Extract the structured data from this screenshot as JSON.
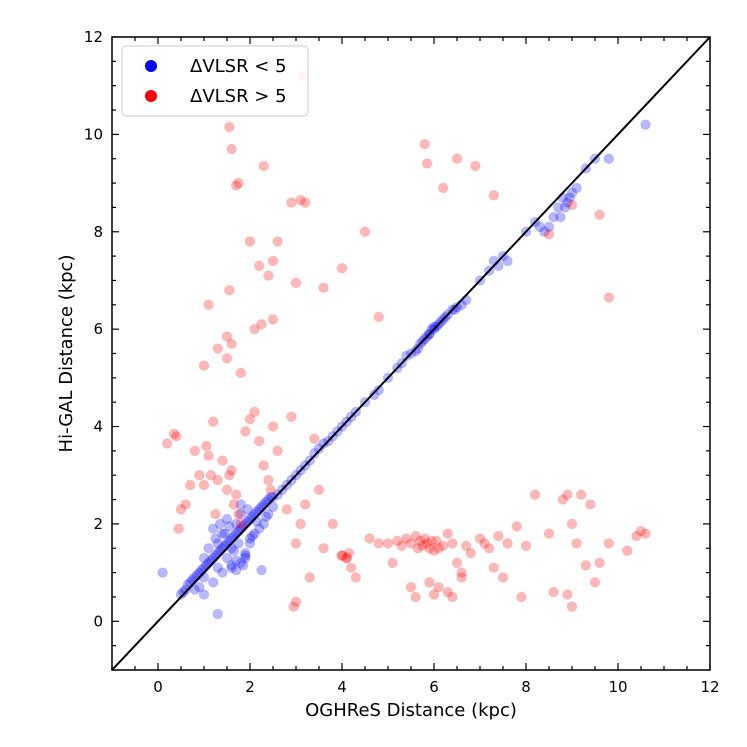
{
  "chart_data": {
    "type": "scatter",
    "xlabel": "OGHReS Distance (kpc)",
    "ylabel": "Hi-GAL Distance (kpc)",
    "xlim": [
      -1,
      12
    ],
    "ylim": [
      -1,
      12
    ],
    "xticks": [
      0,
      2,
      4,
      6,
      8,
      10,
      12
    ],
    "yticks": [
      0,
      2,
      4,
      6,
      8,
      10,
      12
    ],
    "reference_line": "y = x",
    "legend_position": "top-left",
    "series": [
      {
        "name": "ΔVLSR < 5",
        "color": "#0000ff",
        "x": [
          0.1,
          0.5,
          0.55,
          0.6,
          0.65,
          0.7,
          0.75,
          0.8,
          0.85,
          0.9,
          0.95,
          1.0,
          1.05,
          1.1,
          1.15,
          1.2,
          1.25,
          1.3,
          1.35,
          1.4,
          1.45,
          1.5,
          1.55,
          1.6,
          1.65,
          1.7,
          1.75,
          1.8,
          1.85,
          1.9,
          1.95,
          2.0,
          2.05,
          2.1,
          2.15,
          2.2,
          2.25,
          2.3,
          2.35,
          2.4,
          2.5,
          2.6,
          2.7,
          2.8,
          2.9,
          3.0,
          1.3,
          1.4,
          1.5,
          1.6,
          1.7,
          1.8,
          1.9,
          2.0,
          1.2,
          1.1,
          1.0,
          1.5,
          1.6,
          1.7,
          1.8,
          1.9,
          2.0,
          2.1,
          2.2,
          1.4,
          1.3,
          1.2,
          2.3,
          2.4,
          1.25,
          1.35,
          1.45,
          1.55,
          1.65,
          1.75,
          1.85,
          1.95,
          2.05,
          2.15,
          1.0,
          0.9,
          0.8,
          2.5,
          2.45,
          2.35,
          1.9,
          1.8,
          1.7,
          1.6,
          3.1,
          3.2,
          3.3,
          3.4,
          3.5,
          3.6,
          3.7,
          3.8,
          3.9,
          4.0,
          4.1,
          4.2,
          4.3,
          4.5,
          4.7,
          4.8,
          5.0,
          5.2,
          5.3,
          5.4,
          5.5,
          5.6,
          5.7,
          5.75,
          5.8,
          5.85,
          5.9,
          5.95,
          6.0,
          6.05,
          6.1,
          6.15,
          6.2,
          6.3,
          6.4,
          6.5,
          6.6,
          6.7,
          5.65,
          5.9,
          6.0,
          6.25,
          6.45,
          7.0,
          7.2,
          7.3,
          7.4,
          7.5,
          7.6,
          8.0,
          8.2,
          8.3,
          8.4,
          8.5,
          8.7,
          8.8,
          8.9,
          9.0,
          9.1,
          9.3,
          9.5,
          9.8,
          10.6,
          8.6,
          8.75,
          8.85,
          8.95,
          1.3,
          1.0,
          2.25
        ],
        "y": [
          1.0,
          0.55,
          0.6,
          0.65,
          0.75,
          0.8,
          0.85,
          0.9,
          0.95,
          1.0,
          1.05,
          1.1,
          1.15,
          1.2,
          1.25,
          1.3,
          1.35,
          1.4,
          1.45,
          1.5,
          1.55,
          1.6,
          1.65,
          1.7,
          1.75,
          1.8,
          1.85,
          1.9,
          1.95,
          2.0,
          2.05,
          2.1,
          2.15,
          2.2,
          2.25,
          2.3,
          2.35,
          2.4,
          2.45,
          2.5,
          2.55,
          2.6,
          2.7,
          2.8,
          2.9,
          3.0,
          1.6,
          1.8,
          1.3,
          1.5,
          2.0,
          1.2,
          1.4,
          1.7,
          1.9,
          1.5,
          0.9,
          2.1,
          1.1,
          1.25,
          2.2,
          1.35,
          1.6,
          1.8,
          1.9,
          1.0,
          1.1,
          0.8,
          2.0,
          2.2,
          1.7,
          2.0,
          1.8,
          1.95,
          1.45,
          1.6,
          1.15,
          2.3,
          1.75,
          2.05,
          1.3,
          0.7,
          0.65,
          2.35,
          2.55,
          2.15,
          1.3,
          2.4,
          1.05,
          1.15,
          3.1,
          3.2,
          3.3,
          3.45,
          3.55,
          3.65,
          3.7,
          3.8,
          3.9,
          4.0,
          4.1,
          4.2,
          4.3,
          4.5,
          4.65,
          4.75,
          5.0,
          5.2,
          5.3,
          5.45,
          5.5,
          5.55,
          5.7,
          5.75,
          5.8,
          5.85,
          5.9,
          6.0,
          6.0,
          6.05,
          6.1,
          6.15,
          6.2,
          6.3,
          6.4,
          6.45,
          6.5,
          6.6,
          5.6,
          5.9,
          6.05,
          6.25,
          6.4,
          7.0,
          7.2,
          7.4,
          7.3,
          7.5,
          7.4,
          8.0,
          8.2,
          8.1,
          8.0,
          8.1,
          8.5,
          8.7,
          8.6,
          8.8,
          8.9,
          9.3,
          9.5,
          9.5,
          10.2,
          8.3,
          8.3,
          8.5,
          8.7,
          0.15,
          0.55,
          1.05
        ]
      },
      {
        "name": "ΔVLSR > 5",
        "color": "#ff0000",
        "x": [
          0.2,
          0.35,
          0.4,
          0.45,
          0.5,
          0.6,
          0.7,
          0.8,
          0.9,
          1.0,
          1.05,
          1.1,
          1.15,
          1.2,
          1.25,
          1.3,
          1.4,
          1.5,
          1.55,
          1.6,
          1.65,
          1.7,
          1.75,
          1.8,
          1.9,
          2.0,
          2.1,
          2.2,
          2.3,
          2.4,
          2.45,
          2.5,
          2.6,
          2.8,
          2.9,
          3.0,
          3.1,
          3.2,
          3.4,
          3.5,
          3.6,
          3.8,
          4.0,
          4.1,
          4.2,
          4.3,
          4.6,
          4.8,
          5.0,
          5.1,
          5.2,
          5.3,
          5.4,
          5.5,
          5.6,
          5.65,
          5.7,
          5.75,
          5.8,
          5.85,
          5.9,
          5.95,
          6.0,
          6.05,
          6.1,
          6.2,
          6.3,
          6.4,
          6.5,
          6.6,
          6.7,
          6.8,
          7.0,
          7.1,
          7.2,
          7.3,
          7.4,
          7.5,
          7.6,
          7.8,
          8.0,
          8.2,
          8.5,
          8.8,
          8.9,
          9.0,
          9.1,
          9.2,
          9.3,
          9.4,
          9.6,
          9.8,
          10.2,
          10.4,
          10.5,
          10.6,
          1.55,
          1.6,
          1.5,
          1.7,
          1.75,
          1.55,
          2.0,
          2.2,
          2.5,
          2.6,
          2.4,
          2.1,
          2.25,
          3.0,
          2.9,
          3.1,
          3.2,
          3.6,
          4.0,
          4.5,
          4.8,
          5.8,
          5.85,
          6.2,
          6.5,
          6.9,
          7.3,
          8.5,
          9.0,
          9.6,
          9.8,
          4.1,
          4.0,
          4.15,
          5.5,
          5.6,
          5.9,
          6.0,
          6.1,
          6.3,
          6.4,
          6.6,
          1.5,
          1.6,
          1.8,
          2.3,
          2.5,
          3.0,
          3.3,
          1.0,
          1.1,
          1.3,
          3.15,
          2.95,
          8.6,
          9.0,
          9.5,
          8.9,
          7.9
        ],
        "y": [
          3.65,
          3.85,
          3.8,
          1.9,
          2.3,
          2.4,
          2.8,
          3.5,
          3.0,
          2.8,
          3.6,
          3.4,
          3.0,
          4.1,
          2.2,
          2.9,
          3.3,
          2.7,
          3.0,
          3.1,
          2.4,
          2.6,
          2.2,
          2.0,
          3.9,
          4.15,
          4.3,
          3.7,
          3.2,
          2.9,
          2.7,
          4.0,
          3.5,
          2.3,
          4.2,
          1.6,
          2.0,
          2.4,
          3.75,
          2.7,
          1.5,
          2.0,
          1.35,
          1.3,
          1.1,
          0.9,
          1.7,
          1.6,
          1.6,
          1.2,
          1.65,
          1.55,
          1.7,
          1.6,
          1.75,
          1.5,
          1.65,
          1.55,
          1.7,
          1.6,
          1.5,
          1.65,
          1.45,
          1.65,
          1.5,
          1.55,
          1.8,
          1.6,
          1.2,
          1.0,
          1.55,
          1.4,
          1.7,
          1.6,
          1.5,
          1.1,
          1.75,
          0.9,
          1.6,
          1.95,
          1.55,
          2.6,
          1.8,
          2.5,
          2.6,
          2.0,
          1.6,
          2.6,
          1.15,
          2.4,
          1.2,
          1.6,
          1.45,
          1.75,
          1.85,
          1.8,
          10.15,
          9.7,
          5.85,
          8.95,
          9.0,
          6.8,
          7.8,
          7.3,
          7.4,
          7.8,
          7.1,
          6.0,
          6.1,
          6.95,
          8.6,
          8.65,
          8.6,
          6.85,
          7.25,
          8.0,
          6.25,
          9.8,
          9.4,
          8.9,
          9.5,
          9.35,
          8.75,
          7.95,
          8.55,
          8.35,
          6.65,
          1.3,
          1.35,
          1.4,
          0.7,
          0.5,
          0.8,
          0.55,
          0.7,
          0.6,
          0.5,
          0.9,
          5.4,
          5.7,
          5.1,
          9.35,
          6.2,
          0.4,
          0.9,
          5.25,
          6.5,
          5.6,
          11.2,
          0.3,
          0.6,
          0.3,
          0.8,
          0.55,
          0.5
        ]
      }
    ]
  }
}
